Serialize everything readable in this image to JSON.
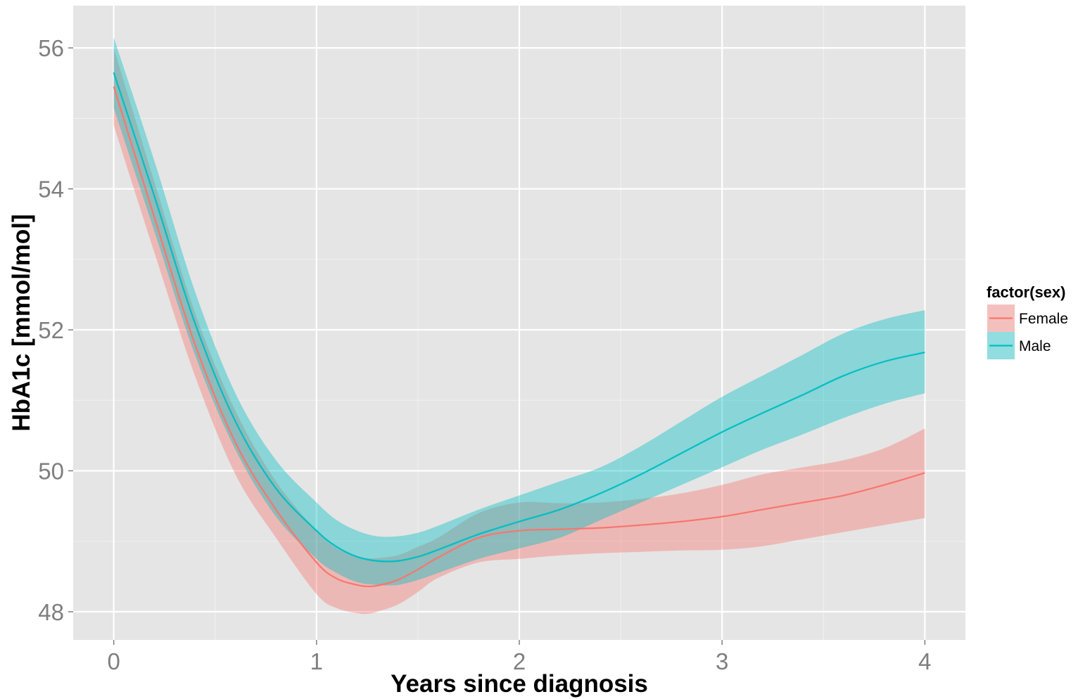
{
  "chart_data": {
    "type": "line",
    "xlabel": "Years since diagnosis",
    "ylabel": "HbA1c [mmol/mol]",
    "xlim": [
      -0.2,
      4.2
    ],
    "ylim": [
      47.6,
      56.6
    ],
    "x_ticks": [
      0,
      1,
      2,
      3,
      4
    ],
    "y_ticks": [
      48,
      50,
      52,
      54,
      56
    ],
    "x_tick_labels": [
      "0",
      "1",
      "2",
      "3",
      "4"
    ],
    "y_tick_labels": [
      "48",
      "50",
      "52",
      "54",
      "56"
    ],
    "grid": true,
    "legend": {
      "title": "factor(sex)",
      "position": "right"
    },
    "series": [
      {
        "name": "Female",
        "color": "#F8766D",
        "fill": "#F8766D",
        "x": [
          0,
          0.2,
          0.4,
          0.6,
          0.8,
          1.0,
          1.1,
          1.2,
          1.25,
          1.3,
          1.4,
          1.5,
          1.6,
          1.8,
          2.0,
          2.2,
          2.4,
          2.6,
          2.8,
          3.0,
          3.2,
          3.4,
          3.6,
          3.8,
          4.0
        ],
        "y": [
          55.45,
          53.6,
          51.8,
          50.4,
          49.45,
          48.7,
          48.47,
          48.38,
          48.36,
          48.37,
          48.45,
          48.6,
          48.77,
          49.05,
          49.15,
          49.17,
          49.19,
          49.23,
          49.28,
          49.35,
          49.45,
          49.55,
          49.65,
          49.8,
          49.97
        ],
        "lower": [
          54.9,
          53.1,
          51.35,
          49.95,
          49.05,
          48.25,
          48.05,
          47.98,
          47.97,
          48.0,
          48.1,
          48.28,
          48.48,
          48.7,
          48.75,
          48.8,
          48.83,
          48.85,
          48.87,
          48.88,
          48.93,
          49.03,
          49.13,
          49.23,
          49.33
        ],
        "upper": [
          56.0,
          54.1,
          52.25,
          50.85,
          49.85,
          49.15,
          48.9,
          48.78,
          48.76,
          48.76,
          48.8,
          48.92,
          49.05,
          49.4,
          49.55,
          49.54,
          49.55,
          49.6,
          49.68,
          49.8,
          49.95,
          50.05,
          50.15,
          50.32,
          50.6
        ]
      },
      {
        "name": "Male",
        "color": "#00BFC4",
        "fill": "#00BFC4",
        "x": [
          0,
          0.2,
          0.4,
          0.6,
          0.8,
          1.0,
          1.1,
          1.2,
          1.3,
          1.4,
          1.5,
          1.6,
          1.8,
          2.0,
          2.2,
          2.4,
          2.6,
          2.8,
          3.0,
          3.2,
          3.4,
          3.6,
          3.8,
          4.0
        ],
        "y": [
          55.65,
          53.9,
          52.1,
          50.7,
          49.75,
          49.15,
          48.92,
          48.78,
          48.72,
          48.72,
          48.78,
          48.88,
          49.1,
          49.28,
          49.45,
          49.68,
          49.95,
          50.25,
          50.55,
          50.82,
          51.08,
          51.35,
          51.55,
          51.68
        ],
        "lower": [
          55.15,
          53.4,
          51.65,
          50.3,
          49.35,
          48.75,
          48.55,
          48.42,
          48.38,
          48.38,
          48.45,
          48.55,
          48.75,
          48.9,
          49.05,
          49.3,
          49.55,
          49.8,
          50.05,
          50.3,
          50.52,
          50.75,
          50.95,
          51.1
        ],
        "upper": [
          56.15,
          54.4,
          52.55,
          51.1,
          50.15,
          49.55,
          49.3,
          49.15,
          49.07,
          49.07,
          49.12,
          49.22,
          49.45,
          49.65,
          49.85,
          50.05,
          50.35,
          50.7,
          51.05,
          51.35,
          51.65,
          51.95,
          52.15,
          52.28
        ]
      }
    ]
  }
}
